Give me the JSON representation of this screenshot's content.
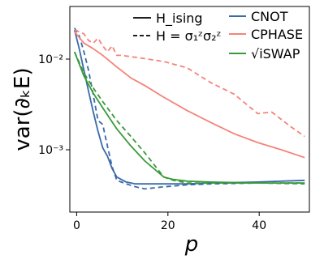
{
  "chart_data": {
    "type": "line",
    "xlabel": "p",
    "ylabel": "var(∂ₖE)",
    "xlim": [
      0,
      51
    ],
    "ylim": [
      0.0002,
      0.04
    ],
    "yscale": "log",
    "x_ticks": [
      0,
      20,
      40
    ],
    "x_tick_labels": [
      "0",
      "20",
      "40"
    ],
    "y_ticks": [
      0.001,
      0.01
    ],
    "y_tick_labels": [
      "10⁻³",
      "10⁻²"
    ],
    "grid": false,
    "legends": [
      {
        "placement": "top-center",
        "entries": [
          {
            "label": "H_ising",
            "style": "solid"
          },
          {
            "label": "H = σ₁ᶻσ₂ᶻ",
            "style": "dashed"
          }
        ]
      },
      {
        "placement": "top-right",
        "entries": [
          {
            "label": "CNOT",
            "color": "#3a6aaa"
          },
          {
            "label": "CPHASE",
            "color": "#f4837a"
          },
          {
            "label": "√iSWAP",
            "color": "#3a9a3a"
          }
        ]
      }
    ],
    "series": [
      {
        "name": "CNOT",
        "gate": "CNOT",
        "hamiltonian": "H_ising",
        "style": "solid",
        "color": "#3a6aaa",
        "x": [
          1,
          2,
          3,
          4,
          5,
          6,
          7,
          8,
          9,
          10,
          12,
          14,
          16,
          20,
          25,
          30,
          40,
          50
        ],
        "y": [
          0.021,
          0.013,
          0.0075,
          0.0044,
          0.0026,
          0.0016,
          0.00105,
          0.00085,
          0.00062,
          0.0005,
          0.00044,
          0.00042,
          0.00042,
          0.00042,
          0.00042,
          0.00043,
          0.00044,
          0.00046
        ]
      },
      {
        "name": "CNOT",
        "gate": "CNOT",
        "hamiltonian": "H = σ₁ᶻσ₂ᶻ",
        "style": "dashed",
        "color": "#3a6aaa",
        "x": [
          1,
          2,
          3,
          4,
          5,
          6,
          7,
          8,
          9,
          10,
          12,
          14,
          16,
          20,
          25,
          30,
          40,
          50
        ],
        "y": [
          0.022,
          0.018,
          0.012,
          0.0075,
          0.004,
          0.0021,
          0.0019,
          0.0011,
          0.00065,
          0.00046,
          0.00042,
          0.00039,
          0.00037,
          0.00039,
          0.00041,
          0.00042,
          0.00043,
          0.00043
        ]
      },
      {
        "name": "CPHASE",
        "gate": "CPHASE",
        "hamiltonian": "H_ising",
        "style": "solid",
        "color": "#f4837a",
        "x": [
          1,
          3,
          5,
          7,
          10,
          13,
          16,
          20,
          25,
          30,
          35,
          40,
          45,
          50
        ],
        "y": [
          0.02,
          0.015,
          0.013,
          0.011,
          0.0082,
          0.0062,
          0.0051,
          0.0038,
          0.0027,
          0.002,
          0.0015,
          0.0012,
          0.001,
          0.00082
        ]
      },
      {
        "name": "CPHASE",
        "gate": "CPHASE",
        "hamiltonian": "H = σ₁ᶻσ₂ᶻ",
        "style": "dashed",
        "color": "#f4837a",
        "x": [
          1,
          2,
          3,
          4,
          5,
          6,
          7,
          8,
          9,
          10,
          11,
          15,
          20,
          25,
          30,
          35,
          40,
          43,
          47,
          50
        ],
        "y": [
          0.021,
          0.02,
          0.019,
          0.016,
          0.015,
          0.017,
          0.014,
          0.012,
          0.014,
          0.011,
          0.011,
          0.0103,
          0.0094,
          0.008,
          0.0055,
          0.0041,
          0.0025,
          0.0026,
          0.0018,
          0.0014
        ]
      },
      {
        "name": "√iSWAP",
        "gate": "√iSWAP",
        "hamiltonian": "H_ising",
        "style": "solid",
        "color": "#3a9a3a",
        "x": [
          1,
          3,
          5,
          7,
          10,
          13,
          16,
          20,
          22,
          25,
          30,
          40,
          50
        ],
        "y": [
          0.012,
          0.0065,
          0.0042,
          0.0029,
          0.0017,
          0.0011,
          0.00075,
          0.0005,
          0.00047,
          0.00045,
          0.00044,
          0.00043,
          0.00043
        ]
      },
      {
        "name": "√iSWAP",
        "gate": "√iSWAP",
        "hamiltonian": "H = σ₁ᶻσ₂ᶻ",
        "style": "dashed",
        "color": "#3a9a3a",
        "x": [
          1,
          3,
          5,
          7,
          10,
          13,
          16,
          20,
          22,
          25,
          30,
          40,
          50
        ],
        "y": [
          0.012,
          0.007,
          0.0048,
          0.0034,
          0.0021,
          0.0014,
          0.00092,
          0.0005,
          0.00046,
          0.00043,
          0.00043,
          0.00043,
          0.00042
        ]
      }
    ]
  }
}
